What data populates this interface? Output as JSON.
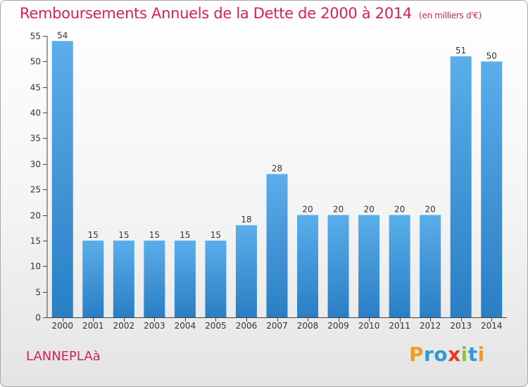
{
  "title": "Remboursements Annuels de la Dette de 2000 à 2014",
  "unit_note": "(en milliers d'€)",
  "commune": "LANNEPLAà",
  "logo": {
    "letters": [
      "P",
      "r",
      "o",
      "x",
      "i",
      "t",
      "i"
    ],
    "colors": [
      "#f39a1f",
      "#2e9ad8",
      "#2e9ad8",
      "#e8382c",
      "#8cc63f",
      "#2e9ad8",
      "#f39a1f"
    ]
  },
  "colors": {
    "bar_light": "#5aaeea",
    "bar_dark": "#2a7ec4",
    "title": "#d81f5e",
    "axis": "#444444"
  },
  "chart_data": {
    "type": "bar",
    "title": "Remboursements Annuels de la Dette de 2000 à 2014",
    "categories": [
      "2000",
      "2001",
      "2002",
      "2003",
      "2004",
      "2005",
      "2006",
      "2007",
      "2008",
      "2009",
      "2010",
      "2011",
      "2012",
      "2013",
      "2014"
    ],
    "values": [
      54,
      15,
      15,
      15,
      15,
      15,
      18,
      28,
      20,
      20,
      20,
      20,
      20,
      51,
      50
    ],
    "ylim": [
      0,
      55
    ],
    "yticks": [
      0,
      5,
      10,
      15,
      20,
      25,
      30,
      35,
      40,
      45,
      50,
      55
    ],
    "xlabel": "",
    "ylabel": "",
    "grid": false,
    "legend": "none"
  }
}
